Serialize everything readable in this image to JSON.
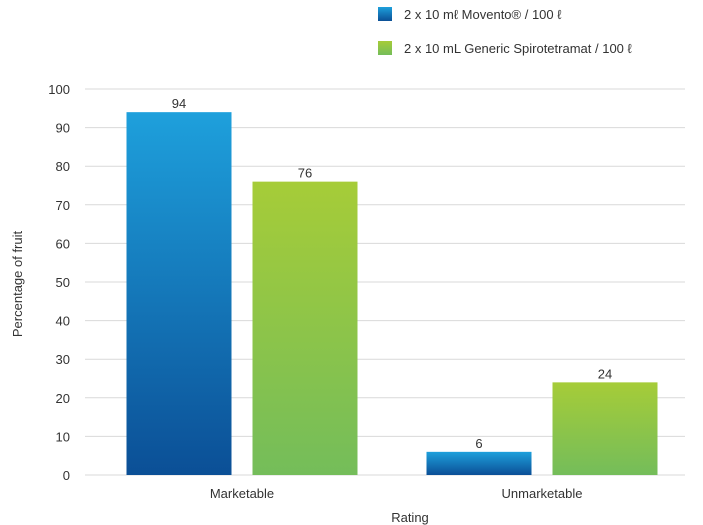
{
  "chart_data": {
    "type": "bar",
    "categories": [
      "Marketable",
      "Unmarketable"
    ],
    "series": [
      {
        "name": "2 x 10 mℓ Movento® / 100 ℓ",
        "values": [
          94,
          6
        ],
        "colors": {
          "top": "#1ea0dc",
          "bottom": "#0b4f96"
        }
      },
      {
        "name": "2 x 10 mL Generic Spirotetramat / 100 ℓ",
        "values": [
          76,
          24
        ],
        "colors": {
          "top": "#a6cc38",
          "bottom": "#74bd5a"
        }
      }
    ],
    "data_labels": [
      "94",
      "6",
      "76",
      "24"
    ],
    "xlabel": "Rating",
    "ylabel": "Percentage of fruit",
    "ylim": [
      0,
      100
    ],
    "yticks": [
      0,
      10,
      20,
      30,
      40,
      50,
      60,
      70,
      80,
      90,
      100
    ],
    "grid": true,
    "gridline_color": "#d9d9d9",
    "legend_position": "top-right"
  }
}
